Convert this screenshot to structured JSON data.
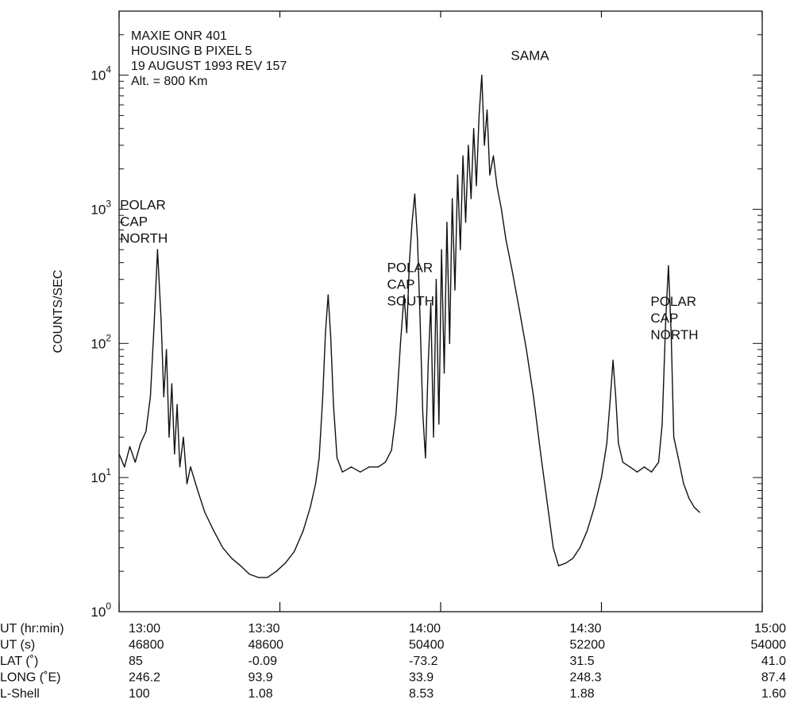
{
  "chart_data": {
    "type": "line",
    "ylabel": "COUNTS/SEC",
    "yscale": "log",
    "ylim": [
      1,
      30000
    ],
    "xlim": [
      46800,
      54000
    ],
    "y_ticks": [
      {
        "value": 1,
        "base": "10",
        "exp": "0"
      },
      {
        "value": 10,
        "base": "10",
        "exp": "1"
      },
      {
        "value": 100,
        "base": "10",
        "exp": "2"
      },
      {
        "value": 1000,
        "base": "10",
        "exp": "3"
      },
      {
        "value": 10000,
        "base": "10",
        "exp": "4"
      }
    ],
    "x_tick_values": [
      46800,
      48600,
      50400,
      52200,
      54000
    ],
    "header_lines": [
      "MAXIE ONR 401",
      "HOUSING B PIXEL 5",
      "19 AUGUST 1993 REV 157",
      "Alt. = 800 Km"
    ],
    "annotations": [
      {
        "lines": [
          "POLAR",
          "CAP",
          "NORTH"
        ],
        "x": 46810,
        "y": 1000,
        "anchor": "start"
      },
      {
        "lines": [
          "POLAR",
          "CAP",
          "SOUTH"
        ],
        "x": 49800,
        "y": 340,
        "anchor": "start"
      },
      {
        "lines": [
          "SAMA"
        ],
        "x": 51400,
        "y": 13000,
        "anchor": "middle"
      },
      {
        "lines": [
          "POLAR",
          "CAP",
          "NORTH"
        ],
        "x": 52750,
        "y": 190,
        "anchor": "start"
      }
    ],
    "table": {
      "rows": [
        {
          "label": "UT (hr:min)",
          "values": [
            "13:00",
            "13:30",
            "14:00",
            "14:30",
            "15:00"
          ]
        },
        {
          "label": "UT (s)",
          "values": [
            "46800",
            "48600",
            "50400",
            "52200",
            "54000"
          ]
        },
        {
          "label": "LAT (˚)",
          "values": [
            "85",
            "-0.09",
            "-73.2",
            "31.5",
            "41.0"
          ]
        },
        {
          "label": "LONG (˚E)",
          "values": [
            "246.2",
            "93.9",
            "33.9",
            "248.3",
            "87.4"
          ]
        },
        {
          "label": "L-Shell",
          "values": [
            "100",
            "1.08",
            "8.53",
            "1.88",
            "1.60"
          ]
        }
      ]
    },
    "series": [
      {
        "values": [
          [
            46800,
            15
          ],
          [
            46860,
            12
          ],
          [
            46920,
            17
          ],
          [
            46980,
            13
          ],
          [
            47040,
            18
          ],
          [
            47100,
            22
          ],
          [
            47150,
            40
          ],
          [
            47190,
            130
          ],
          [
            47230,
            500
          ],
          [
            47270,
            150
          ],
          [
            47300,
            40
          ],
          [
            47330,
            90
          ],
          [
            47360,
            20
          ],
          [
            47390,
            50
          ],
          [
            47420,
            15
          ],
          [
            47450,
            35
          ],
          [
            47480,
            12
          ],
          [
            47520,
            20
          ],
          [
            47560,
            9
          ],
          [
            47600,
            12
          ],
          [
            47680,
            8
          ],
          [
            47760,
            5.5
          ],
          [
            47860,
            4
          ],
          [
            47960,
            3
          ],
          [
            48060,
            2.5
          ],
          [
            48160,
            2.2
          ],
          [
            48260,
            1.9
          ],
          [
            48360,
            1.8
          ],
          [
            48460,
            1.8
          ],
          [
            48560,
            2
          ],
          [
            48660,
            2.3
          ],
          [
            48760,
            2.8
          ],
          [
            48860,
            4
          ],
          [
            48940,
            6
          ],
          [
            49000,
            9
          ],
          [
            49040,
            14
          ],
          [
            49080,
            40
          ],
          [
            49110,
            120
          ],
          [
            49140,
            230
          ],
          [
            49170,
            110
          ],
          [
            49200,
            35
          ],
          [
            49240,
            14
          ],
          [
            49300,
            11
          ],
          [
            49400,
            12
          ],
          [
            49500,
            11
          ],
          [
            49600,
            12
          ],
          [
            49700,
            12
          ],
          [
            49780,
            13
          ],
          [
            49850,
            16
          ],
          [
            49900,
            30
          ],
          [
            49950,
            100
          ],
          [
            49990,
            230
          ],
          [
            50020,
            120
          ],
          [
            50050,
            400
          ],
          [
            50080,
            800
          ],
          [
            50110,
            1300
          ],
          [
            50140,
            600
          ],
          [
            50170,
            150
          ],
          [
            50200,
            30
          ],
          [
            50230,
            14
          ],
          [
            50260,
            70
          ],
          [
            50290,
            200
          ],
          [
            50320,
            20
          ],
          [
            50350,
            300
          ],
          [
            50380,
            25
          ],
          [
            50410,
            500
          ],
          [
            50440,
            60
          ],
          [
            50470,
            800
          ],
          [
            50500,
            100
          ],
          [
            50530,
            1200
          ],
          [
            50560,
            250
          ],
          [
            50590,
            1800
          ],
          [
            50620,
            500
          ],
          [
            50650,
            2500
          ],
          [
            50680,
            800
          ],
          [
            50710,
            3000
          ],
          [
            50740,
            1200
          ],
          [
            50770,
            4000
          ],
          [
            50800,
            1500
          ],
          [
            50830,
            5000
          ],
          [
            50860,
            10000
          ],
          [
            50890,
            3000
          ],
          [
            50920,
            5500
          ],
          [
            50950,
            1800
          ],
          [
            50990,
            2500
          ],
          [
            51030,
            1500
          ],
          [
            51080,
            1000
          ],
          [
            51130,
            600
          ],
          [
            51200,
            350
          ],
          [
            51280,
            180
          ],
          [
            51360,
            90
          ],
          [
            51440,
            40
          ],
          [
            51520,
            15
          ],
          [
            51600,
            6
          ],
          [
            51660,
            3
          ],
          [
            51720,
            2.2
          ],
          [
            51800,
            2.3
          ],
          [
            51880,
            2.5
          ],
          [
            51960,
            3
          ],
          [
            52040,
            4
          ],
          [
            52120,
            6
          ],
          [
            52200,
            10
          ],
          [
            52260,
            18
          ],
          [
            52300,
            40
          ],
          [
            52330,
            75
          ],
          [
            52360,
            40
          ],
          [
            52390,
            18
          ],
          [
            52440,
            13
          ],
          [
            52520,
            12
          ],
          [
            52600,
            11
          ],
          [
            52680,
            12
          ],
          [
            52760,
            11
          ],
          [
            52840,
            13
          ],
          [
            52880,
            25
          ],
          [
            52920,
            150
          ],
          [
            52950,
            380
          ],
          [
            52980,
            120
          ],
          [
            53010,
            20
          ],
          [
            53060,
            14
          ],
          [
            53120,
            9
          ],
          [
            53180,
            7
          ],
          [
            53240,
            6
          ],
          [
            53300,
            5.5
          ]
        ]
      }
    ]
  }
}
